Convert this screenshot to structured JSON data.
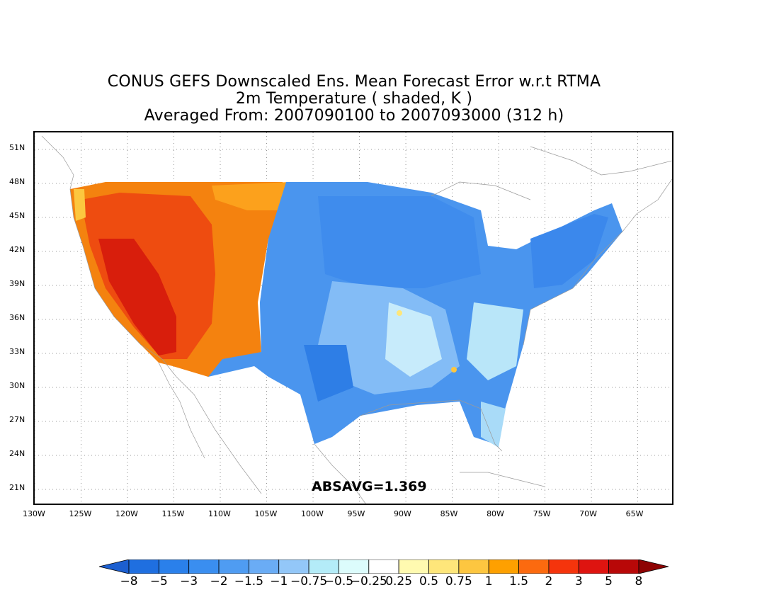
{
  "title": {
    "line1": "CONUS GEFS Downscaled Ens. Mean Forecast Error w.r.t RTMA",
    "line2": "2m Temperature ( shaded, K )",
    "line3": "Averaged From: 2007090100 to 2007093000 (312 h)"
  },
  "map": {
    "lon_range": [
      -130,
      -61
    ],
    "lat_range": [
      19.5,
      52.5
    ],
    "grid": true,
    "lat_labels": [
      "51N",
      "48N",
      "45N",
      "42N",
      "39N",
      "36N",
      "33N",
      "30N",
      "27N",
      "24N",
      "21N"
    ],
    "lat_values": [
      51,
      48,
      45,
      42,
      39,
      36,
      33,
      30,
      27,
      24,
      21
    ],
    "lon_labels": [
      "130W",
      "125W",
      "120W",
      "115W",
      "110W",
      "105W",
      "100W",
      "95W",
      "90W",
      "85W",
      "80W",
      "75W",
      "70W",
      "65W"
    ],
    "lon_values": [
      -130,
      -125,
      -120,
      -115,
      -110,
      -105,
      -100,
      -95,
      -90,
      -85,
      -80,
      -75,
      -70,
      -65
    ],
    "annotation": "ABSAVG=1.369",
    "west_region_error": "positive (warm bias, 1 to 5 K)",
    "east_region_error": "negative (cold bias, -0.25 to -2 K)"
  },
  "colorbar": {
    "labels": [
      "−8",
      "−5",
      "−3",
      "−2",
      "−1.5",
      "−1",
      "−0.75",
      "−0.5",
      "−0.25",
      "0.25",
      "0.5",
      "0.75",
      "1",
      "1.5",
      "2",
      "3",
      "5",
      "8"
    ],
    "colors": [
      "#1f6fe0",
      "#2a80eb",
      "#3a8ef0",
      "#4f9cf2",
      "#6aacf5",
      "#93c7f8",
      "#b4ecf8",
      "#dcfcfc",
      "#ffffff",
      "#fffab0",
      "#fee67a",
      "#fdc640",
      "#fea000",
      "#fc6a0f",
      "#f5340c",
      "#de1410",
      "#b80808"
    ],
    "extend_low_color": "#1c5fd0",
    "extend_high_color": "#8e0303"
  }
}
